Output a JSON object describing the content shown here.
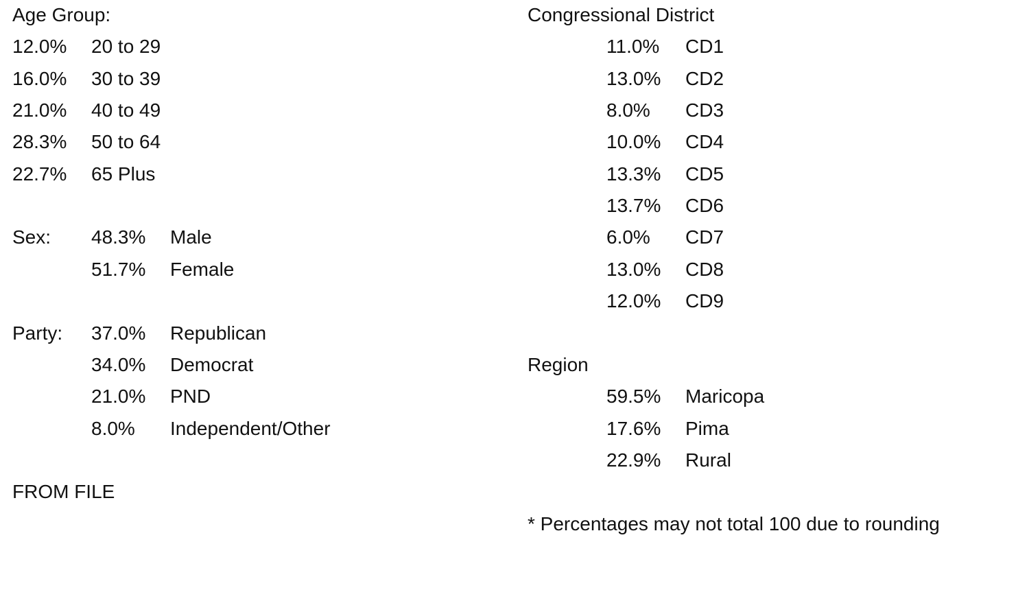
{
  "left": {
    "age_group": {
      "label": "Age Group:",
      "rows": [
        {
          "pct": "12.0%",
          "label": "20 to 29"
        },
        {
          "pct": "16.0%",
          "label": "30 to 39"
        },
        {
          "pct": "21.0%",
          "label": "40 to 49"
        },
        {
          "pct": "28.3%",
          "label": "50 to 64"
        },
        {
          "pct": "22.7%",
          "label": "65 Plus"
        }
      ]
    },
    "sex": {
      "label": "Sex:",
      "rows": [
        {
          "pct": "48.3%",
          "label": "Male"
        },
        {
          "pct": "51.7%",
          "label": "Female"
        }
      ]
    },
    "party": {
      "label": "Party:",
      "rows": [
        {
          "pct": "37.0%",
          "label": "Republican"
        },
        {
          "pct": "34.0%",
          "label": "Democrat"
        },
        {
          "pct": "21.0%",
          "label": "PND"
        },
        {
          "pct": "8.0%",
          "label": "Independent/Other"
        }
      ]
    },
    "note": "FROM FILE"
  },
  "right": {
    "district": {
      "label": "Congressional District",
      "rows": [
        {
          "pct": "11.0%",
          "label": "CD1"
        },
        {
          "pct": "13.0%",
          "label": "CD2"
        },
        {
          "pct": "8.0%",
          "label": "CD3"
        },
        {
          "pct": "10.0%",
          "label": "CD4"
        },
        {
          "pct": "13.3%",
          "label": "CD5"
        },
        {
          "pct": "13.7%",
          "label": "CD6"
        },
        {
          "pct": "6.0%",
          "label": "CD7"
        },
        {
          "pct": "13.0%",
          "label": "CD8"
        },
        {
          "pct": "12.0%",
          "label": "CD9"
        }
      ]
    },
    "region": {
      "label": "Region",
      "rows": [
        {
          "pct": "59.5%",
          "label": "Maricopa"
        },
        {
          "pct": "17.6%",
          "label": "Pima"
        },
        {
          "pct": "22.9%",
          "label": "Rural"
        }
      ]
    },
    "footnote": "* Percentages may not total 100 due to rounding"
  }
}
